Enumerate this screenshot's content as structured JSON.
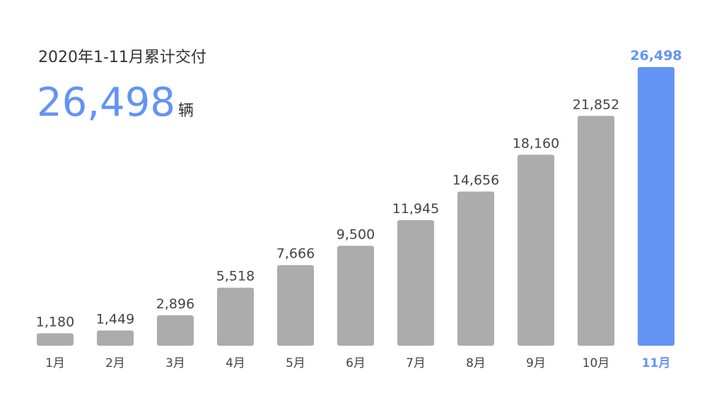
{
  "chart_data": {
    "type": "bar",
    "title": "2020年1-11月累计交付",
    "summary_value": "26,498",
    "summary_unit": "辆",
    "categories": [
      "1月",
      "2月",
      "3月",
      "4月",
      "5月",
      "6月",
      "7月",
      "8月",
      "9月",
      "10月",
      "11月"
    ],
    "values": [
      1180,
      1449,
      2896,
      5518,
      7666,
      9500,
      11945,
      14656,
      18160,
      21852,
      26498
    ],
    "value_labels": [
      "1,180",
      "1,449",
      "2,896",
      "5,518",
      "7,666",
      "9,500",
      "11,945",
      "14,656",
      "18,160",
      "21,852",
      "26,498"
    ],
    "color": "#acacac",
    "colors": [
      "#acacac",
      "#acacac",
      "#acacac",
      "#acacac",
      "#acacac",
      "#acacac",
      "#acacac",
      "#acacac",
      "#acacac",
      "#acacac",
      "#6393f5"
    ]
  }
}
